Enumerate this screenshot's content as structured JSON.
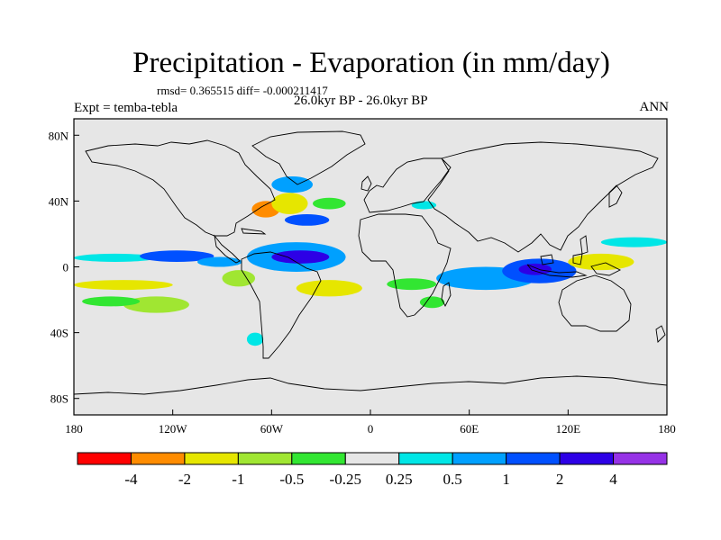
{
  "chart_data": {
    "type": "heatmap",
    "title": "Precipitation - Evaporation (in mm/day)",
    "stats": "rmsd= 0.365515 diff= -0.000211417",
    "time_label": "26.0kyr BP - 26.0kyr BP",
    "left_label": "Expt = temba-tebla",
    "right_label": "ANN",
    "x_ticks": [
      {
        "value": -180,
        "label": "180"
      },
      {
        "value": -120,
        "label": "120W"
      },
      {
        "value": -60,
        "label": "60W"
      },
      {
        "value": 0,
        "label": "0"
      },
      {
        "value": 60,
        "label": "60E"
      },
      {
        "value": 120,
        "label": "120E"
      },
      {
        "value": 180,
        "label": "180"
      }
    ],
    "y_ticks": [
      {
        "value": 80,
        "label": "80N"
      },
      {
        "value": 40,
        "label": "40N"
      },
      {
        "value": 0,
        "label": "0"
      },
      {
        "value": -40,
        "label": "40S"
      },
      {
        "value": -80,
        "label": "80S"
      }
    ],
    "xlim": [
      -180,
      180
    ],
    "ylim": [
      -90,
      90
    ],
    "colorbar": {
      "colors": [
        "#ff0000",
        "#ff8c00",
        "#e6e600",
        "#a0e632",
        "#32e632",
        "#e6e6e6",
        "#00e6e6",
        "#00a0ff",
        "#0050ff",
        "#2d00e6",
        "#9632e6"
      ],
      "labels": [
        "-4",
        "-2",
        "-1",
        "-0.5",
        "-0.25",
        "0.25",
        "0.5",
        "1",
        "2",
        "4"
      ]
    },
    "regions": [
      {
        "value": 0.4,
        "lon": [
          -180,
          -130
        ],
        "lat": [
          3,
          8
        ]
      },
      {
        "value": 1.5,
        "lon": [
          -140,
          -95
        ],
        "lat": [
          3,
          10
        ]
      },
      {
        "value": 0.7,
        "lon": [
          -105,
          -78
        ],
        "lat": [
          0,
          6
        ]
      },
      {
        "value": -1.2,
        "lon": [
          -180,
          -120
        ],
        "lat": [
          -14,
          -8
        ]
      },
      {
        "value": -0.6,
        "lon": [
          -150,
          -110
        ],
        "lat": [
          -28,
          -18
        ]
      },
      {
        "value": -0.3,
        "lon": [
          -175,
          -140
        ],
        "lat": [
          -24,
          -18
        ]
      },
      {
        "value": 0.6,
        "lon": [
          -75,
          -15
        ],
        "lat": [
          -3,
          15
        ]
      },
      {
        "value": 2.5,
        "lon": [
          -60,
          -25
        ],
        "lat": [
          2,
          10
        ]
      },
      {
        "value": -1.2,
        "lon": [
          -45,
          -5
        ],
        "lat": [
          -18,
          -8
        ]
      },
      {
        "value": -0.6,
        "lon": [
          -90,
          -70
        ],
        "lat": [
          -12,
          -2
        ]
      },
      {
        "value": -2.5,
        "lon": [
          -72,
          -55
        ],
        "lat": [
          30,
          40
        ]
      },
      {
        "value": -1.3,
        "lon": [
          -60,
          -38
        ],
        "lat": [
          32,
          45
        ]
      },
      {
        "value": 1.5,
        "lon": [
          -52,
          -25
        ],
        "lat": [
          25,
          32
        ]
      },
      {
        "value": 0.8,
        "lon": [
          -60,
          -35
        ],
        "lat": [
          45,
          55
        ]
      },
      {
        "value": -0.3,
        "lon": [
          -35,
          -15
        ],
        "lat": [
          35,
          42
        ]
      },
      {
        "value": 0.4,
        "lon": [
          25,
          40
        ],
        "lat": [
          35,
          40
        ]
      },
      {
        "value": 0.7,
        "lon": [
          40,
          100
        ],
        "lat": [
          -14,
          0
        ]
      },
      {
        "value": 1.5,
        "lon": [
          80,
          125
        ],
        "lat": [
          -10,
          5
        ]
      },
      {
        "value": 2.5,
        "lon": [
          90,
          110
        ],
        "lat": [
          -5,
          2
        ]
      },
      {
        "value": -1.2,
        "lon": [
          120,
          160
        ],
        "lat": [
          -2,
          8
        ]
      },
      {
        "value": 0.4,
        "lon": [
          140,
          180
        ],
        "lat": [
          12,
          18
        ]
      },
      {
        "value": -0.4,
        "lon": [
          10,
          40
        ],
        "lat": [
          -14,
          -7
        ]
      },
      {
        "value": -0.4,
        "lon": [
          30,
          45
        ],
        "lat": [
          -25,
          -18
        ]
      },
      {
        "value": 0.4,
        "lon": [
          -75,
          -65
        ],
        "lat": [
          -48,
          -40
        ]
      }
    ]
  }
}
